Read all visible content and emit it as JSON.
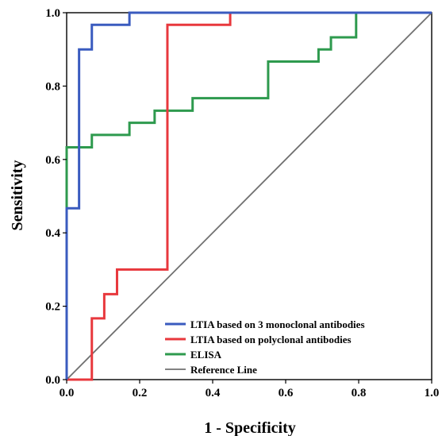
{
  "chart_data": {
    "type": "line",
    "title": "",
    "xlabel": "1 - Specificity",
    "ylabel": "Sensitivity",
    "xlim": [
      0,
      1
    ],
    "ylim": [
      0,
      1
    ],
    "xticks": [
      "0.0",
      "0.2",
      "0.4",
      "0.6",
      "0.8",
      "1.0"
    ],
    "yticks": [
      "0.0",
      "0.2",
      "0.4",
      "0.6",
      "0.8",
      "1.0"
    ],
    "grid": false,
    "legend_position": "bottom-right",
    "series": [
      {
        "name": "LTIA based on 3 monoclonal antibodies",
        "color": "#3a5bbf",
        "x": [
          0,
          0,
          0.034,
          0.034,
          0.069,
          0.069,
          0.172,
          0.172,
          1
        ],
        "y": [
          0,
          0.467,
          0.467,
          0.9,
          0.9,
          0.967,
          0.967,
          1,
          1
        ]
      },
      {
        "name": "LTIA based on polyclonal antibodies",
        "color": "#e8383d",
        "x": [
          0,
          0.069,
          0.069,
          0.103,
          0.103,
          0.138,
          0.138,
          0.276,
          0.276,
          0.448,
          0.448,
          1
        ],
        "y": [
          0,
          0,
          0.167,
          0.167,
          0.233,
          0.233,
          0.3,
          0.3,
          0.967,
          0.967,
          1,
          1
        ]
      },
      {
        "name": "ELISA",
        "color": "#2e9a4e",
        "x": [
          0,
          0,
          0.069,
          0.069,
          0.172,
          0.172,
          0.241,
          0.241,
          0.345,
          0.345,
          0.552,
          0.552,
          0.69,
          0.69,
          0.724,
          0.724,
          0.793,
          0.793,
          1
        ],
        "y": [
          0,
          0.633,
          0.633,
          0.667,
          0.667,
          0.7,
          0.7,
          0.733,
          0.733,
          0.767,
          0.767,
          0.867,
          0.867,
          0.9,
          0.9,
          0.933,
          0.933,
          1,
          1
        ]
      },
      {
        "name": "Reference Line",
        "color": "#707070",
        "x": [
          0,
          1
        ],
        "y": [
          0,
          1
        ]
      }
    ]
  }
}
